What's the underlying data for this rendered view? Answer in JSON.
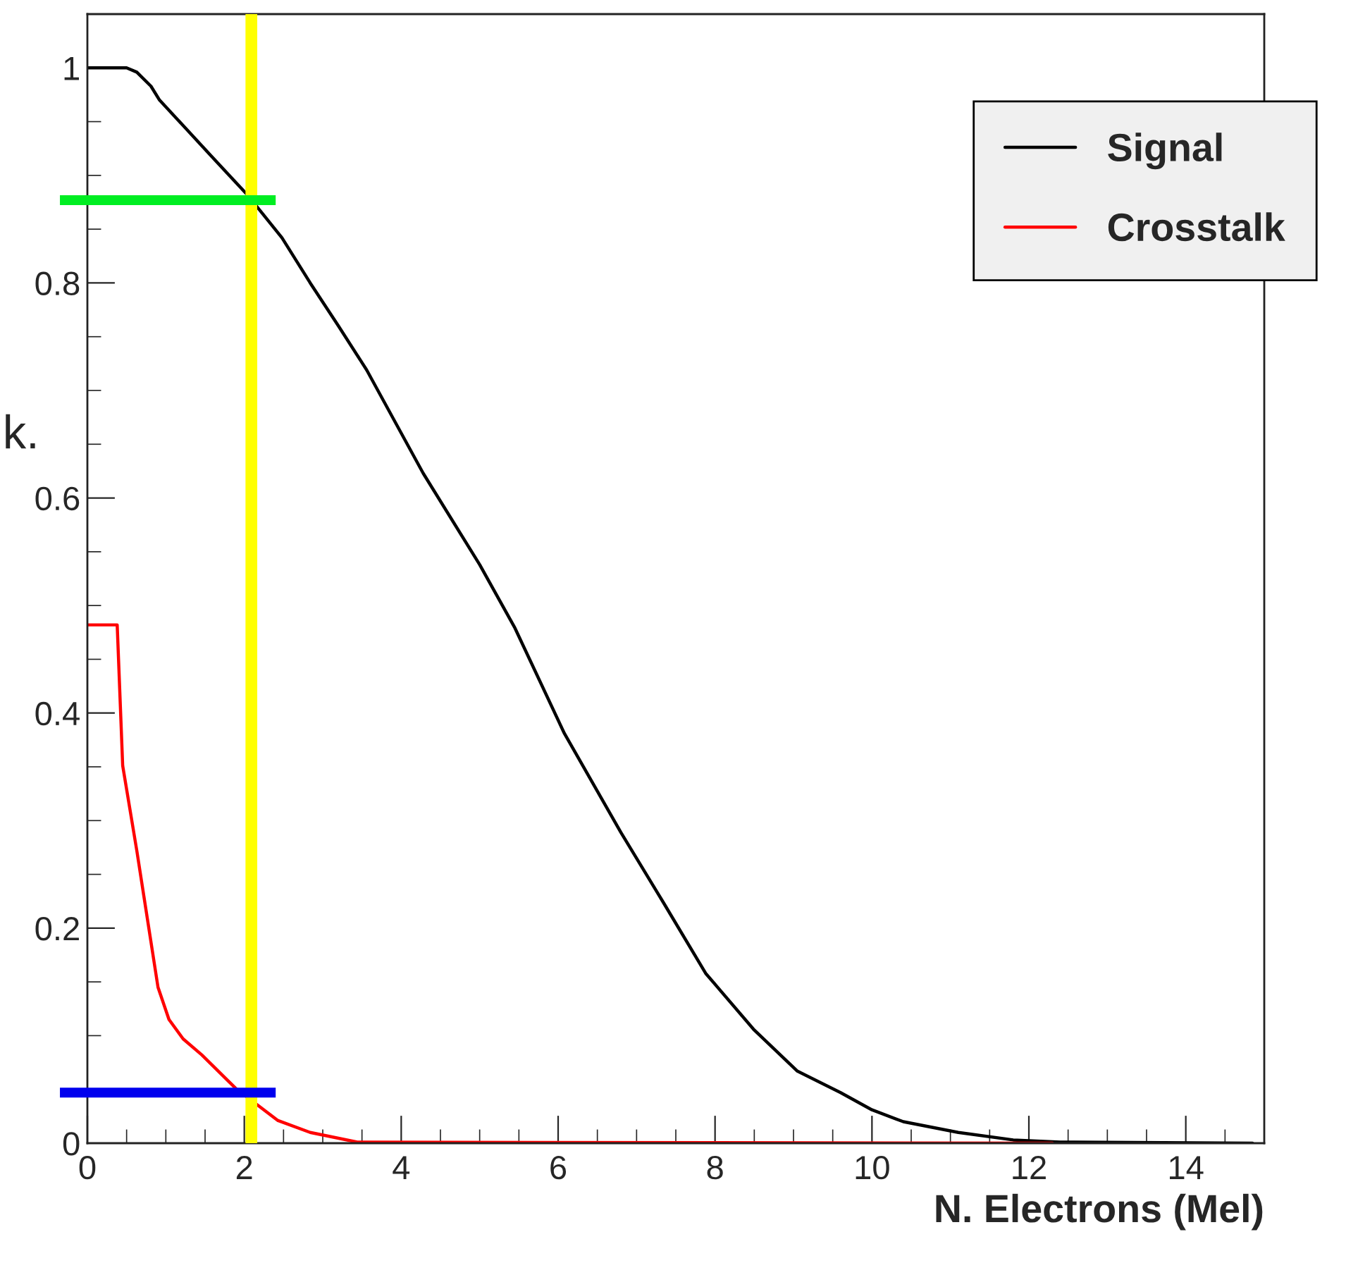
{
  "chart_data": {
    "type": "line",
    "xlabel": "N. Electrons (Mel)",
    "xlim": [
      0,
      15
    ],
    "ylim": [
      0,
      1.05
    ],
    "xticks": [
      0,
      2,
      4,
      6,
      8,
      10,
      12,
      14
    ],
    "yticks": [
      0,
      0.2,
      0.4,
      0.6,
      0.8,
      1
    ],
    "series": [
      {
        "name": "Signal",
        "color": "#000000",
        "x": [
          0,
          0.5,
          0.63,
          0.81,
          0.92,
          1.58,
          2.05,
          2.48,
          2.84,
          3.2,
          3.56,
          4.28,
          5.0,
          5.45,
          6.08,
          6.8,
          7.34,
          7.88,
          8.49,
          9.05,
          9.6,
          10.0,
          10.4,
          11.1,
          11.8,
          12.4,
          14.85
        ],
        "values": [
          1.0,
          1.0,
          0.996,
          0.983,
          0.97,
          0.918,
          0.881,
          0.842,
          0.8,
          0.76,
          0.719,
          0.623,
          0.538,
          0.479,
          0.381,
          0.289,
          0.224,
          0.158,
          0.106,
          0.067,
          0.047,
          0.031,
          0.02,
          0.01,
          0.003,
          0.001,
          0
        ]
      },
      {
        "name": "Crosstalk",
        "color": "#ff0000",
        "x": [
          0,
          0.38,
          0.45,
          0.63,
          0.9,
          1.04,
          1.22,
          1.46,
          1.89,
          2.43,
          2.84,
          3.44,
          12.3
        ],
        "values": [
          0.482,
          0.482,
          0.351,
          0.272,
          0.145,
          0.115,
          0.097,
          0.082,
          0.051,
          0.021,
          0.01,
          0.001,
          0
        ]
      }
    ],
    "ref_lines": [
      {
        "axis": "x",
        "value": 2.09,
        "color": "#ffff00"
      },
      {
        "axis": "y",
        "value": 0.877,
        "color": "#00ee22"
      },
      {
        "axis": "y",
        "value": 0.047,
        "color": "#0000ee"
      }
    ],
    "annotations": [
      "k."
    ],
    "legend": "top right",
    "grid": false,
    "marker": "none",
    "line_style": "solid"
  }
}
